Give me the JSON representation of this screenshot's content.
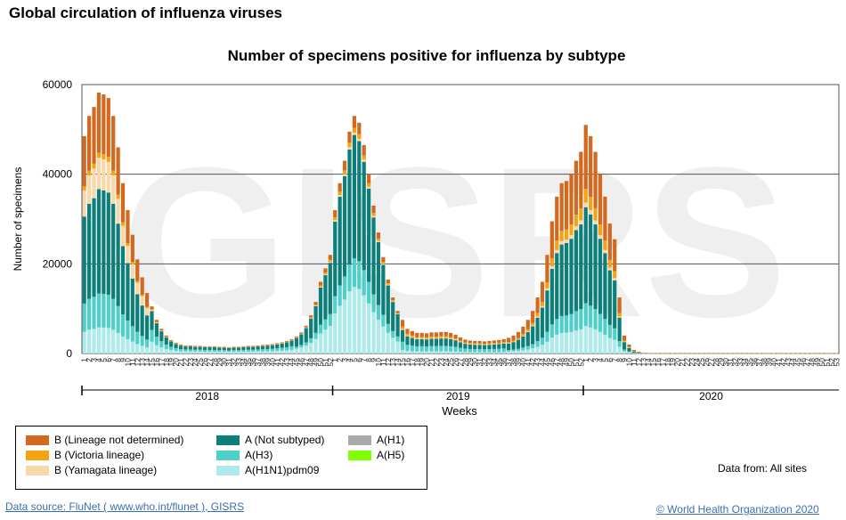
{
  "page_title": "Global circulation of influenza viruses",
  "chart_data": {
    "type": "bar",
    "stacked": true,
    "title": "Number of specimens positive for influenza by subtype",
    "xlabel": "Weeks",
    "ylabel": "Number of specimens",
    "ylim": [
      0,
      60000
    ],
    "yticks": [
      "0",
      "20000",
      "40000",
      "60000"
    ],
    "watermark": "GISRS",
    "grid": true,
    "years": [
      {
        "label": "2018",
        "start_week_index": 0
      },
      {
        "label": "2019",
        "start_week_index": 52
      },
      {
        "label": "2020",
        "start_week_index": 104
      }
    ],
    "weeks_per_year": [
      52,
      52,
      53
    ],
    "series": [
      {
        "name": "A(H1N1)pdm09",
        "color": "#aeeaea",
        "values": []
      },
      {
        "name": "A(H3)",
        "color": "#4ecfc9",
        "values": []
      },
      {
        "name": "A(Not subtyped)",
        "color": "#0d7f7b",
        "values": []
      },
      {
        "name": "B (Yamagata lineage)",
        "color": "#f8d8a8",
        "values": []
      },
      {
        "name": "B (Victoria lineage)",
        "color": "#f5a312",
        "values": []
      },
      {
        "name": "B (Lineage not determined)",
        "color": "#d2691e",
        "values": []
      },
      {
        "name": "A(H1)",
        "color": "#aaaaaa",
        "values": []
      },
      {
        "name": "A(H5)",
        "color": "#80ff00",
        "values": []
      }
    ],
    "totals": [
      48500,
      53000,
      55000,
      58200,
      57800,
      57000,
      53000,
      46000,
      38000,
      32000,
      26500,
      21000,
      17000,
      13500,
      10500,
      7500,
      5500,
      4000,
      3000,
      2400,
      2000,
      1800,
      1800,
      1700,
      1700,
      1600,
      1600,
      1600,
      1500,
      1500,
      1400,
      1500,
      1500,
      1600,
      1700,
      1700,
      1800,
      1900,
      2000,
      2100,
      2300,
      2500,
      2800,
      3200,
      3800,
      4700,
      6200,
      8500,
      11500,
      16000,
      19000,
      22000,
      32000,
      38000,
      43000,
      49500,
      53000,
      51500,
      46500,
      40000,
      33000,
      27000,
      21500,
      16500,
      12500,
      9500,
      7500,
      5500,
      5000,
      4600,
      4600,
      4500,
      4700,
      4700,
      4800,
      4800,
      4600,
      4200,
      3600,
      3100,
      2900,
      2800,
      2800,
      2700,
      2800,
      2900,
      3000,
      3200,
      3500,
      4000,
      4800,
      6000,
      7500,
      9500,
      12500,
      16000,
      22000,
      29500,
      35000,
      38000,
      38500,
      40000,
      43000,
      45000,
      51000,
      48500,
      45000,
      40000,
      35000,
      29000,
      25500,
      12500,
      4000,
      2000,
      800,
      400,
      150,
      100,
      80,
      70,
      70,
      60,
      60,
      60,
      60,
      60,
      60,
      60,
      60,
      60,
      60,
      60,
      60,
      60,
      60,
      60,
      60,
      60,
      60,
      60,
      60,
      60,
      60,
      60,
      60,
      60,
      60,
      60,
      60,
      60,
      60,
      60,
      60,
      60,
      60,
      60,
      60
    ],
    "composition_by_phase": {
      "2018_early": {
        "A(H1N1)pdm09": 0.1,
        "A(H3)": 0.13,
        "A(Not subtyped)": 0.4,
        "B (Yamagata lineage)": 0.12,
        "B (Victoria lineage)": 0.02,
        "B (Lineage not determined)": 0.23
      },
      "2018_low": {
        "A(H1N1)pdm09": 0.25,
        "A(H3)": 0.25,
        "A(Not subtyped)": 0.4,
        "B (Yamagata lineage)": 0.02,
        "B (Victoria lineage)": 0.02,
        "B (Lineage not determined)": 0.06
      },
      "2019_peak": {
        "A(H1N1)pdm09": 0.28,
        "A(H3)": 0.12,
        "A(Not subtyped)": 0.52,
        "B (Yamagata lineage)": 0.01,
        "B (Victoria lineage)": 0.02,
        "B (Lineage not determined)": 0.05
      },
      "2019_low": {
        "A(H1N1)pdm09": 0.1,
        "A(H3)": 0.25,
        "A(Not subtyped)": 0.35,
        "B (Yamagata lineage)": 0.03,
        "B (Victoria lineage)": 0.07,
        "B (Lineage not determined)": 0.2
      },
      "2020_peak": {
        "A(H1N1)pdm09": 0.12,
        "A(H3)": 0.1,
        "A(Not subtyped)": 0.42,
        "B (Yamagata lineage)": 0.02,
        "B (Victoria lineage)": 0.06,
        "B (Lineage not determined)": 0.28
      }
    }
  },
  "legend": {
    "items": [
      {
        "label": "B (Lineage not determined)",
        "color": "#d2691e"
      },
      {
        "label": "B (Victoria lineage)",
        "color": "#f5a312"
      },
      {
        "label": "B (Yamagata lineage)",
        "color": "#f8d8a8"
      },
      {
        "label": "A (Not subtyped)",
        "color": "#0d7f7b"
      },
      {
        "label": "A(H3)",
        "color": "#4ecfc9"
      },
      {
        "label": "A(H1N1)pdm09",
        "color": "#aeeaea"
      },
      {
        "label": "A(H1)",
        "color": "#aaaaaa"
      },
      {
        "label": "A(H5)",
        "color": "#80ff00"
      }
    ]
  },
  "data_from": "Data from: All sites",
  "source": "Data source: FluNet ( www.who.int/flunet ), GISRS",
  "copyright": "© World Health Organization 2020"
}
